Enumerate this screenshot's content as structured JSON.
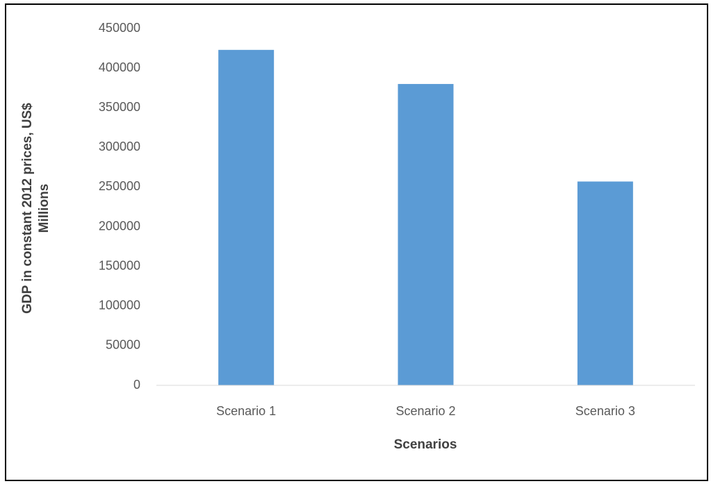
{
  "chart_data": {
    "type": "bar",
    "ylabel": [
      "GDP in constant  2012 prices, US$",
      "Millions"
    ],
    "xlabel": "Scenarios",
    "categories": [
      "Scenario 1",
      "Scenario 2",
      "Scenario 3"
    ],
    "values": [
      423000,
      380000,
      257000
    ],
    "color": "#5b9bd5",
    "ylim": [
      0,
      450000
    ],
    "yticks": [
      0,
      50000,
      100000,
      150000,
      200000,
      250000,
      300000,
      350000,
      400000,
      450000
    ],
    "grid": false
  }
}
